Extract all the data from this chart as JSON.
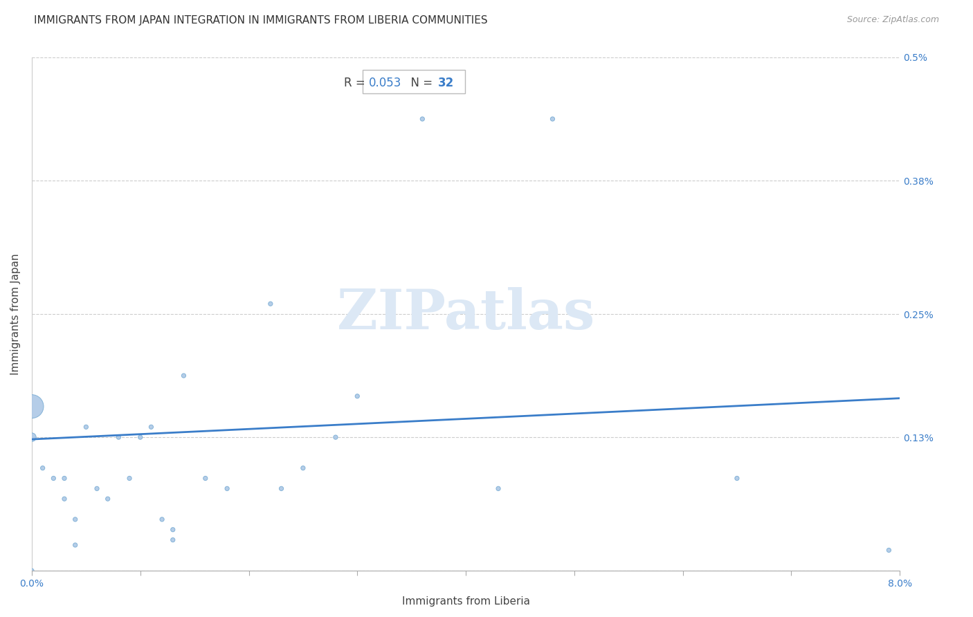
{
  "title": "IMMIGRANTS FROM JAPAN INTEGRATION IN IMMIGRANTS FROM LIBERIA COMMUNITIES",
  "source": "Source: ZipAtlas.com",
  "xlabel": "Immigrants from Liberia",
  "ylabel": "Immigrants from Japan",
  "R": 0.053,
  "N": 32,
  "xlim": [
    0.0,
    0.08
  ],
  "ylim": [
    0.0,
    0.005
  ],
  "xtick_positions": [
    0.0,
    0.01,
    0.02,
    0.03,
    0.04,
    0.05,
    0.06,
    0.07,
    0.08
  ],
  "xtick_labels": [
    "0.0%",
    "",
    "",
    "",
    "",
    "",
    "",
    "",
    "8.0%"
  ],
  "ytick_positions": [
    0.0,
    0.0013,
    0.0025,
    0.0038,
    0.005
  ],
  "ytick_labels": [
    "",
    "0.13%",
    "0.25%",
    "0.38%",
    "0.5%"
  ],
  "scatter_x": [
    0.0,
    0.0,
    0.001,
    0.002,
    0.003,
    0.003,
    0.004,
    0.004,
    0.005,
    0.006,
    0.007,
    0.008,
    0.009,
    0.01,
    0.011,
    0.012,
    0.013,
    0.013,
    0.014,
    0.016,
    0.018,
    0.022,
    0.023,
    0.025,
    0.028,
    0.03,
    0.036,
    0.043,
    0.048,
    0.065,
    0.079,
    0.0
  ],
  "scatter_y": [
    0.0013,
    0.0016,
    0.001,
    0.0009,
    0.0009,
    0.0007,
    0.0005,
    0.00025,
    0.0014,
    0.0008,
    0.0007,
    0.0013,
    0.0009,
    0.0013,
    0.0014,
    0.0005,
    0.0004,
    0.0003,
    0.0019,
    0.0009,
    0.0008,
    0.0026,
    0.0008,
    0.001,
    0.0013,
    0.0017,
    0.0044,
    0.0008,
    0.0044,
    0.0009,
    0.0002,
    0.0
  ],
  "scatter_sizes": [
    80,
    600,
    20,
    20,
    20,
    20,
    20,
    20,
    20,
    20,
    20,
    20,
    20,
    20,
    20,
    20,
    20,
    20,
    20,
    20,
    20,
    20,
    20,
    20,
    20,
    20,
    20,
    20,
    20,
    20,
    20,
    20
  ],
  "scatter_color": "#adc8e6",
  "scatter_edgecolor": "#7aadd4",
  "trend_start_y": 0.00128,
  "trend_end_y": 0.00168,
  "trend_color": "#3a7dc9",
  "trend_linewidth": 2.0,
  "r_label_color": "#444444",
  "n_label_color": "#3a7dc9",
  "watermark_text": "ZIPatlas",
  "watermark_color": "#dce8f5",
  "background_color": "#ffffff",
  "grid_color": "#cccccc",
  "grid_linestyle": "--",
  "grid_linewidth": 0.8,
  "title_fontsize": 11,
  "axis_label_fontsize": 11,
  "tick_fontsize": 10,
  "annotation_fontsize": 12
}
